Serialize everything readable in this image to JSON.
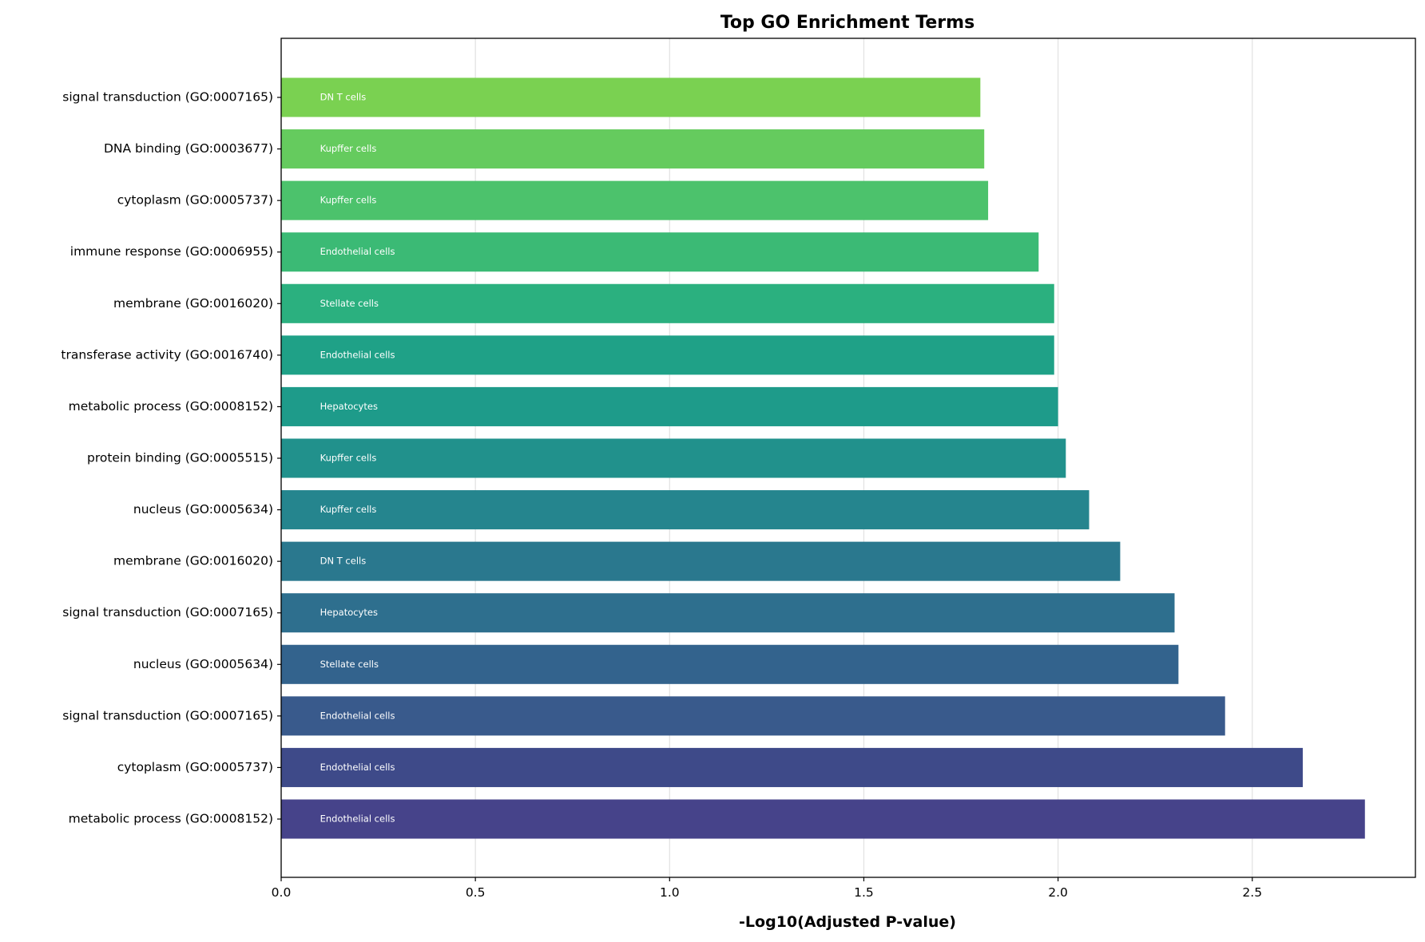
{
  "chart_data": {
    "type": "bar",
    "orientation": "horizontal",
    "title": "Top GO Enrichment Terms",
    "xlabel": "-Log10(Adjusted P-value)",
    "ylabel": "",
    "xlim": [
      0,
      2.92
    ],
    "xticks": [
      "0.0",
      "0.5",
      "1.0",
      "1.5",
      "2.0",
      "2.5"
    ],
    "xtick_values": [
      0,
      0.5,
      1.0,
      1.5,
      2.0,
      2.5
    ],
    "grid": "x-axis vertical lines",
    "categories": [
      "signal transduction (GO:0007165)",
      "DNA binding (GO:0003677)",
      "cytoplasm (GO:0005737)",
      "immune response (GO:0006955)",
      "membrane (GO:0016020)",
      "transferase activity (GO:0016740)",
      "metabolic process (GO:0008152)",
      "protein binding (GO:0005515)",
      "nucleus (GO:0005634)",
      "membrane (GO:0016020)",
      "signal transduction (GO:0007165)",
      "nucleus (GO:0005634)",
      "signal transduction (GO:0007165)",
      "cytoplasm (GO:0005737)",
      "metabolic process (GO:0008152)"
    ],
    "values": [
      1.8,
      1.81,
      1.82,
      1.95,
      1.99,
      1.99,
      2.0,
      2.02,
      2.08,
      2.16,
      2.3,
      2.31,
      2.43,
      2.63,
      2.79
    ],
    "bar_labels": [
      "DN T cells",
      "Kupffer cells",
      "Kupffer cells",
      "Endothelial cells",
      "Stellate cells",
      "Endothelial cells",
      "Hepatocytes",
      "Kupffer cells",
      "Kupffer cells",
      "DN T cells",
      "Hepatocytes",
      "Stellate cells",
      "Endothelial cells",
      "Endothelial cells",
      "Endothelial cells"
    ],
    "colors": [
      "#7ad151",
      "#65cb5e",
      "#4cc26c",
      "#3bba75",
      "#2bb07f",
      "#1fa187",
      "#1e9b8a",
      "#21918c",
      "#25858e",
      "#2a788e",
      "#2e6f8e",
      "#33638d",
      "#395a8c",
      "#3e4a89",
      "#46438a"
    ]
  }
}
